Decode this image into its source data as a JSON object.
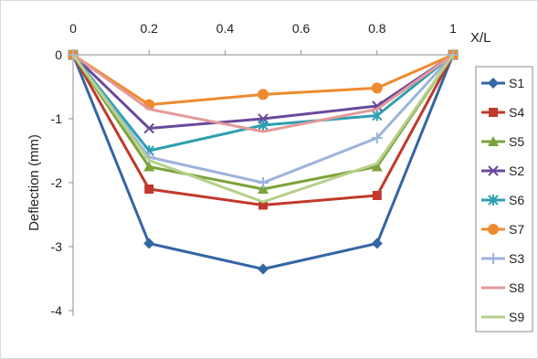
{
  "chart_data": {
    "type": "line",
    "x": [
      0,
      0.2,
      0.5,
      0.8,
      1
    ],
    "x_tick_labels": [
      "0",
      "0.2",
      "0.4",
      "0.6",
      "0.8",
      "1"
    ],
    "x_ticks": [
      0,
      0.2,
      0.4,
      0.6,
      0.8,
      1
    ],
    "xlabel": "X/L",
    "ylabel": "Deflection (mm)",
    "y_tick_labels": [
      "0",
      "-1",
      "-2",
      "-3",
      "-4"
    ],
    "y_ticks": [
      0,
      -1,
      -2,
      -3,
      -4
    ],
    "xlim": [
      0,
      1
    ],
    "ylim": [
      -4,
      0
    ],
    "x_axis_position": "top",
    "grid": false,
    "legend_position": "right",
    "series": [
      {
        "name": "S1",
        "color": "#3465A4",
        "marker": "diamond",
        "values": [
          0,
          -2.95,
          -3.35,
          -2.95,
          0
        ]
      },
      {
        "name": "S4",
        "color": "#C0392B",
        "marker": "square",
        "values": [
          0,
          -2.1,
          -2.35,
          -2.2,
          0
        ]
      },
      {
        "name": "S5",
        "color": "#7BA33A",
        "marker": "triangle",
        "values": [
          0,
          -1.75,
          -2.1,
          -1.75,
          0
        ]
      },
      {
        "name": "S2",
        "color": "#6A4A9C",
        "marker": "x",
        "values": [
          0,
          -1.15,
          -1.0,
          -0.8,
          0
        ]
      },
      {
        "name": "S6",
        "color": "#2E9FB0",
        "marker": "star",
        "values": [
          0,
          -1.5,
          -1.1,
          -0.95,
          0
        ]
      },
      {
        "name": "S7",
        "color": "#EE8A2F",
        "marker": "circle",
        "values": [
          0,
          -0.78,
          -0.62,
          -0.52,
          0
        ]
      },
      {
        "name": "S3",
        "color": "#9DB3DB",
        "marker": "plus",
        "values": [
          0,
          -1.6,
          -2.0,
          -1.3,
          0
        ]
      },
      {
        "name": "S8",
        "color": "#E39A9A",
        "marker": "none",
        "values": [
          0,
          -0.85,
          -1.2,
          -0.85,
          0
        ]
      },
      {
        "name": "S9",
        "color": "#B5D18A",
        "marker": "none",
        "values": [
          0,
          -1.65,
          -2.3,
          -1.7,
          0
        ]
      }
    ]
  }
}
